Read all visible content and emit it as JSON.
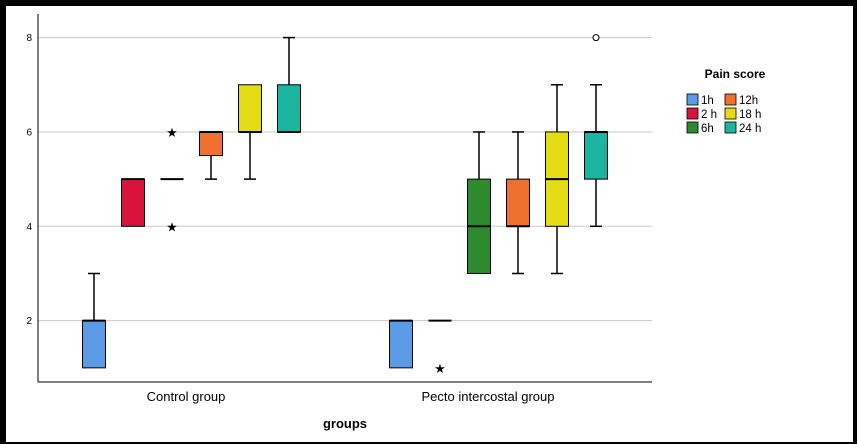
{
  "chart_data": {
    "type": "boxplot",
    "xlabel": "groups",
    "ylabel": "",
    "categories": [
      "Control group",
      "Pecto intercostal group"
    ],
    "yticks": [
      2,
      4,
      6,
      8
    ],
    "ylim": [
      0.7,
      8.5
    ],
    "grid": "horizontal",
    "legend": {
      "title": "Pain score",
      "position": "right",
      "entries": [
        "1h",
        "12h",
        "2 h",
        "18 h",
        "6h",
        "24 h"
      ]
    },
    "series": [
      {
        "name": "1h",
        "color": "#5b9be6",
        "boxes": [
          {
            "min": 1,
            "q1": 1,
            "median": 2,
            "q3": 2,
            "max": 3,
            "outliers": [],
            "extremes": []
          },
          {
            "min": 1,
            "q1": 1,
            "median": 2,
            "q3": 2,
            "max": 2,
            "outliers": [],
            "extremes": []
          }
        ]
      },
      {
        "name": "2 h",
        "color": "#d8143c",
        "boxes": [
          {
            "min": 4,
            "q1": 4,
            "median": 5,
            "q3": 5,
            "max": 5,
            "outliers": [],
            "extremes": []
          },
          {
            "min": 2,
            "q1": 2,
            "median": 2,
            "q3": 2,
            "max": 2,
            "outliers": [],
            "extremes": [
              1
            ]
          }
        ]
      },
      {
        "name": "6h",
        "color": "#2e8a2e",
        "boxes": [
          {
            "min": 5,
            "q1": 5,
            "median": 5,
            "q3": 5,
            "max": 5,
            "outliers": [],
            "extremes": [
              6,
              4
            ]
          },
          {
            "min": 3,
            "q1": 3,
            "median": 4,
            "q3": 5,
            "max": 6,
            "outliers": [],
            "extremes": []
          }
        ]
      },
      {
        "name": "12h",
        "color": "#f07030",
        "boxes": [
          {
            "min": 5,
            "q1": 5.5,
            "median": 6,
            "q3": 6,
            "max": 6,
            "outliers": [],
            "extremes": []
          },
          {
            "min": 3,
            "q1": 4,
            "median": 4,
            "q3": 5,
            "max": 6,
            "outliers": [],
            "extremes": []
          }
        ]
      },
      {
        "name": "18 h",
        "color": "#e4dc14",
        "boxes": [
          {
            "min": 5,
            "q1": 6,
            "median": 6,
            "q3": 7,
            "max": 7,
            "outliers": [],
            "extremes": []
          },
          {
            "min": 3,
            "q1": 4,
            "median": 5,
            "q3": 6,
            "max": 7,
            "outliers": [],
            "extremes": []
          }
        ]
      },
      {
        "name": "24 h",
        "color": "#1ab4a0",
        "boxes": [
          {
            "min": 6,
            "q1": 6,
            "median": 6,
            "q3": 7,
            "max": 8,
            "outliers": [],
            "extremes": []
          },
          {
            "min": 4,
            "q1": 5,
            "median": 6,
            "q3": 6,
            "max": 7,
            "outliers": [
              8
            ],
            "extremes": []
          }
        ]
      }
    ]
  }
}
